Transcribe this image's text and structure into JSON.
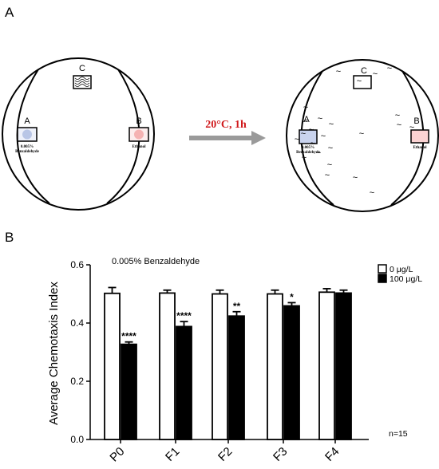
{
  "panel_a": {
    "letter": "A",
    "plate_left": {
      "zone_a_label": "A",
      "zone_b_label": "B",
      "zone_c_label": "C",
      "zone_a_caption_line1": "0.005%",
      "zone_a_caption_line2": "Benzaldehyde",
      "zone_b_caption": "Ethanol"
    },
    "arrow_label": "20°C, 1h",
    "plate_right": {
      "zone_a_label": "A",
      "zone_b_label": "B",
      "zone_c_label": "C",
      "zone_a_caption_line1": "0.005%",
      "zone_a_caption_line2": "Benzaldehyde",
      "zone_b_caption": "Ethanol",
      "worm_glyph": "~"
    },
    "colors": {
      "arrow_label": "#d0191c",
      "zone_a_fill": "#b9c6e6",
      "zone_b_fill": "#f5b2b2"
    }
  },
  "panel_b": {
    "letter": "B"
  },
  "chart_data": {
    "type": "bar",
    "title": "",
    "annotation": "0.005% Benzaldehyde",
    "xlabel": "",
    "ylabel": "Average Chemotaxis Index",
    "ylim": [
      0,
      0.6
    ],
    "yticks": [
      "0.0",
      "0.2",
      "0.4",
      "0.6"
    ],
    "categories": [
      "P0",
      "F1",
      "F2",
      "F3",
      "F4"
    ],
    "series": [
      {
        "name": "0 μg/L",
        "values": [
          0.502,
          0.503,
          0.5,
          0.5,
          0.506
        ],
        "errors": [
          0.02,
          0.01,
          0.013,
          0.013,
          0.012
        ],
        "color": "#ffffff"
      },
      {
        "name": "100 μg/L",
        "values": [
          0.327,
          0.388,
          0.424,
          0.459,
          0.503
        ],
        "errors": [
          0.008,
          0.017,
          0.015,
          0.011,
          0.01
        ],
        "color": "#000000"
      }
    ],
    "significance": [
      "****",
      "****",
      "**",
      "*",
      ""
    ],
    "n_label": "n=15",
    "legend_position": "top-right"
  }
}
